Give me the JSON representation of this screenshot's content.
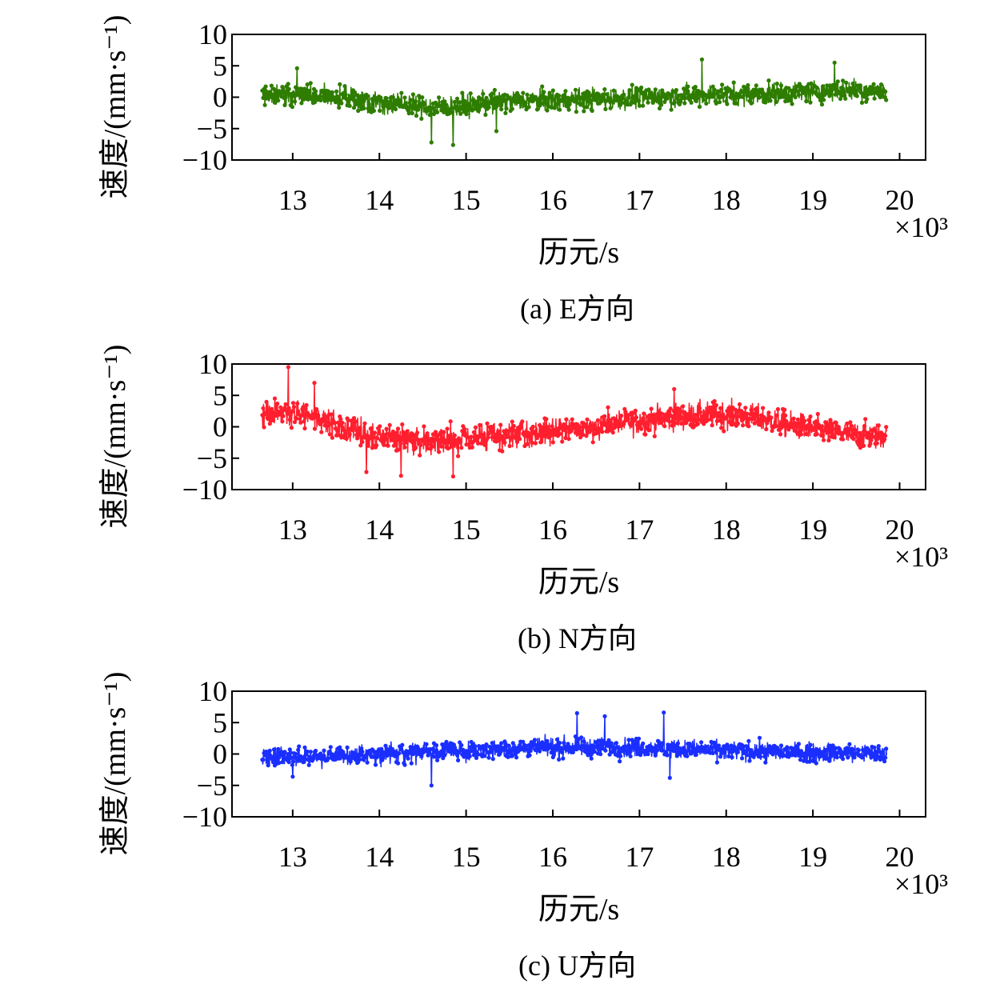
{
  "chart_data": [
    {
      "type": "line",
      "caption": "(a) E方向",
      "xlabel": "历元/s",
      "ylabel": "速度/(mm·s⁻¹)",
      "x_multiplier": "×10³",
      "xlim": [
        12.3,
        20.3
      ],
      "ylim": [
        -10,
        10
      ],
      "xticks": [
        13,
        14,
        15,
        16,
        17,
        18,
        19,
        20
      ],
      "yticks": [
        10,
        5,
        0,
        -5,
        -10
      ],
      "ytick_labels": [
        "10",
        "5",
        "0",
        "−5",
        "−10"
      ],
      "grid": false,
      "marker": "dot",
      "color": "#2e7d00",
      "series": [
        {
          "x": [
            12.65,
            12.85,
            13.05,
            13.25,
            13.45,
            13.65,
            13.85,
            14.05,
            14.25,
            14.45,
            14.65,
            14.85,
            15.05,
            15.25,
            15.45,
            15.65,
            15.85,
            16.05,
            16.25,
            16.45,
            16.65,
            16.85,
            17.05,
            17.25,
            17.45,
            17.65,
            17.85,
            18.05,
            18.25,
            18.45,
            18.65,
            18.85,
            19.05,
            19.25,
            19.45,
            19.65,
            19.85
          ],
          "y": [
            0.5,
            0.4,
            0.3,
            0.2,
            0.0,
            -0.2,
            -0.5,
            -0.8,
            -1.1,
            -1.4,
            -1.6,
            -1.5,
            -1.2,
            -0.9,
            -0.7,
            -0.6,
            -0.6,
            -0.5,
            -0.4,
            -0.3,
            -0.2,
            -0.1,
            0.0,
            0.1,
            0.2,
            0.3,
            0.4,
            0.4,
            0.5,
            0.6,
            0.7,
            0.8,
            0.9,
            1.1,
            1.2,
            1.1,
            1.0
          ],
          "spread": 2.8,
          "max_marker": [
            [
              17.72,
              6.0
            ],
            [
              19.25,
              5.5
            ],
            [
              13.05,
              4.6
            ]
          ],
          "min_marker": [
            [
              14.6,
              -7.2
            ],
            [
              14.85,
              -7.6
            ],
            [
              15.35,
              -5.4
            ]
          ]
        }
      ]
    },
    {
      "type": "line",
      "caption": "(b) N方向",
      "xlabel": "历元/s",
      "ylabel": "速度/(mm·s⁻¹)",
      "x_multiplier": "×10³",
      "xlim": [
        12.3,
        20.3
      ],
      "ylim": [
        -10,
        10
      ],
      "xticks": [
        13,
        14,
        15,
        16,
        17,
        18,
        19,
        20
      ],
      "yticks": [
        10,
        5,
        0,
        -5,
        -10
      ],
      "ytick_labels": [
        "10",
        "5",
        "0",
        "−5",
        "−10"
      ],
      "grid": false,
      "marker": "dot",
      "color": "#ff1f2e",
      "series": [
        {
          "x": [
            12.65,
            12.85,
            13.05,
            13.25,
            13.45,
            13.65,
            13.85,
            14.05,
            14.25,
            14.45,
            14.65,
            14.85,
            15.05,
            15.25,
            15.45,
            15.65,
            15.85,
            16.05,
            16.25,
            16.45,
            16.65,
            16.85,
            17.05,
            17.25,
            17.45,
            17.65,
            17.85,
            18.05,
            18.25,
            18.45,
            18.65,
            18.85,
            19.05,
            19.25,
            19.45,
            19.65,
            19.85
          ],
          "y": [
            2.0,
            2.3,
            2.2,
            1.6,
            0.6,
            -0.4,
            -1.2,
            -1.6,
            -1.9,
            -2.1,
            -2.2,
            -2.1,
            -1.9,
            -1.7,
            -1.5,
            -1.2,
            -0.9,
            -0.6,
            -0.3,
            0.0,
            0.4,
            0.7,
            1.0,
            1.3,
            1.6,
            1.8,
            1.9,
            1.9,
            1.6,
            1.2,
            0.6,
            0.0,
            -0.5,
            -0.9,
            -1.2,
            -1.4,
            -1.5
          ],
          "spread": 3.4,
          "max_marker": [
            [
              12.95,
              9.5
            ],
            [
              13.25,
              7.0
            ],
            [
              17.4,
              6.0
            ]
          ],
          "min_marker": [
            [
              14.25,
              -7.8
            ],
            [
              14.85,
              -7.9
            ],
            [
              13.85,
              -7.2
            ]
          ]
        }
      ]
    },
    {
      "type": "line",
      "caption": "(c) U方向",
      "xlabel": "历元/s",
      "ylabel": "速度/(mm·s⁻¹)",
      "x_multiplier": "×10³",
      "xlim": [
        12.3,
        20.3
      ],
      "ylim": [
        -10,
        10
      ],
      "xticks": [
        13,
        14,
        15,
        16,
        17,
        18,
        19,
        20
      ],
      "yticks": [
        10,
        5,
        0,
        -5,
        -10
      ],
      "ytick_labels": [
        "10",
        "5",
        "0",
        "−5",
        "−10"
      ],
      "grid": false,
      "marker": "dot",
      "color": "#1a2fff",
      "series": [
        {
          "x": [
            12.65,
            12.85,
            13.05,
            13.25,
            13.45,
            13.65,
            13.85,
            14.05,
            14.25,
            14.45,
            14.65,
            14.85,
            15.05,
            15.25,
            15.45,
            15.65,
            15.85,
            16.05,
            16.25,
            16.45,
            16.65,
            16.85,
            17.05,
            17.25,
            17.45,
            17.65,
            17.85,
            18.05,
            18.25,
            18.45,
            18.65,
            18.85,
            19.05,
            19.25,
            19.45,
            19.65,
            19.85
          ],
          "y": [
            -0.6,
            -0.6,
            -0.5,
            -0.4,
            -0.3,
            -0.2,
            -0.1,
            0.0,
            0.2,
            0.3,
            0.4,
            0.5,
            0.6,
            0.7,
            0.8,
            0.9,
            1.0,
            1.0,
            1.1,
            1.1,
            1.1,
            1.0,
            1.0,
            0.9,
            0.8,
            0.7,
            0.6,
            0.5,
            0.4,
            0.4,
            0.3,
            0.3,
            0.2,
            0.2,
            0.1,
            0.1,
            0.0
          ],
          "spread": 2.4,
          "max_marker": [
            [
              16.28,
              6.5
            ],
            [
              17.28,
              6.6
            ],
            [
              16.6,
              6.0
            ]
          ],
          "min_marker": [
            [
              14.6,
              -5.0
            ],
            [
              17.35,
              -3.8
            ],
            [
              13.0,
              -3.6
            ]
          ]
        }
      ]
    }
  ]
}
